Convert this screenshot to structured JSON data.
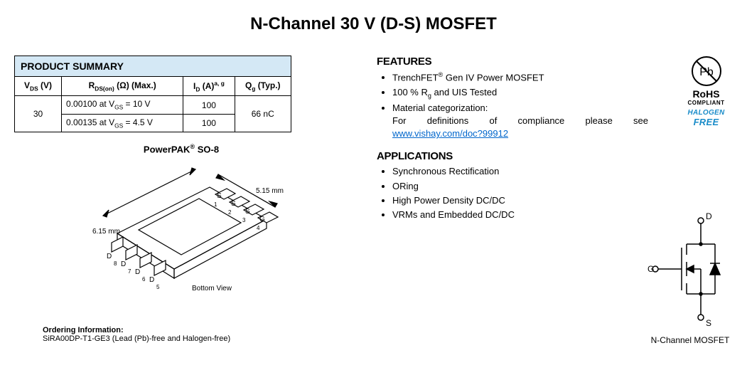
{
  "title": "N-Channel 30 V (D-S) MOSFET",
  "summary": {
    "heading": "PRODUCT SUMMARY",
    "headers": {
      "vds": "V<sub>DS</sub> (V)",
      "rdson": "R<sub>DS(on)</sub> (Ω) (Max.)",
      "id": "I<sub>D</sub> (A)<sup>a, g</sup>",
      "qg": "Q<sub>g</sub> (Typ.)"
    },
    "vds_value": "30",
    "rows": [
      {
        "rdson": "0.00100 at V<sub>GS</sub> = 10 V",
        "id": "100"
      },
      {
        "rdson": "0.00135 at V<sub>GS</sub> = 4.5 V",
        "id": "100"
      }
    ],
    "qg_value": "66 nC"
  },
  "package": {
    "title": "PowerPAK<sup>®</sup> SO-8",
    "width_label": "6.15 mm",
    "length_label": "5.15 mm",
    "bottom_view": "Bottom View",
    "pin_labels": [
      "S",
      "S",
      "S",
      "G",
      "D",
      "D",
      "D",
      "D"
    ],
    "diagram_style": {
      "stroke": "#000000",
      "stroke_width": 1.2,
      "font_size": 10
    }
  },
  "ordering": {
    "label": "Ordering Information:",
    "text": "SiRA00DP-T1-GE3 (Lead (Pb)-free and Halogen-free)"
  },
  "features": {
    "heading": "FEATURES",
    "items": [
      "TrenchFET<sup>®</sup> Gen IV Power MOSFET",
      "100 % R<sub>g</sub> and UIS Tested",
      "Material categorization:<br><span class='just-line'>For definitions of compliance please see</span><a class='compliance-link' data-name='compliance-link' data-interactable='true'>www.vishay.com/doc?99912</a>"
    ]
  },
  "applications": {
    "heading": "APPLICATIONS",
    "items": [
      "Synchronous Rectification",
      "ORing",
      "High Power Density DC/DC",
      "VRMs and Embedded DC/DC"
    ]
  },
  "badges": {
    "pb_symbol": "Pb",
    "rohs": "RoHS",
    "compliant": "COMPLIANT",
    "halogen": "HALOGEN",
    "free": "FREE",
    "colors": {
      "halogen_color": "#1a8cc9"
    }
  },
  "symbol": {
    "D": "D",
    "G": "G",
    "S": "S",
    "caption": "N-Channel MOSFET",
    "stroke": "#000000"
  }
}
